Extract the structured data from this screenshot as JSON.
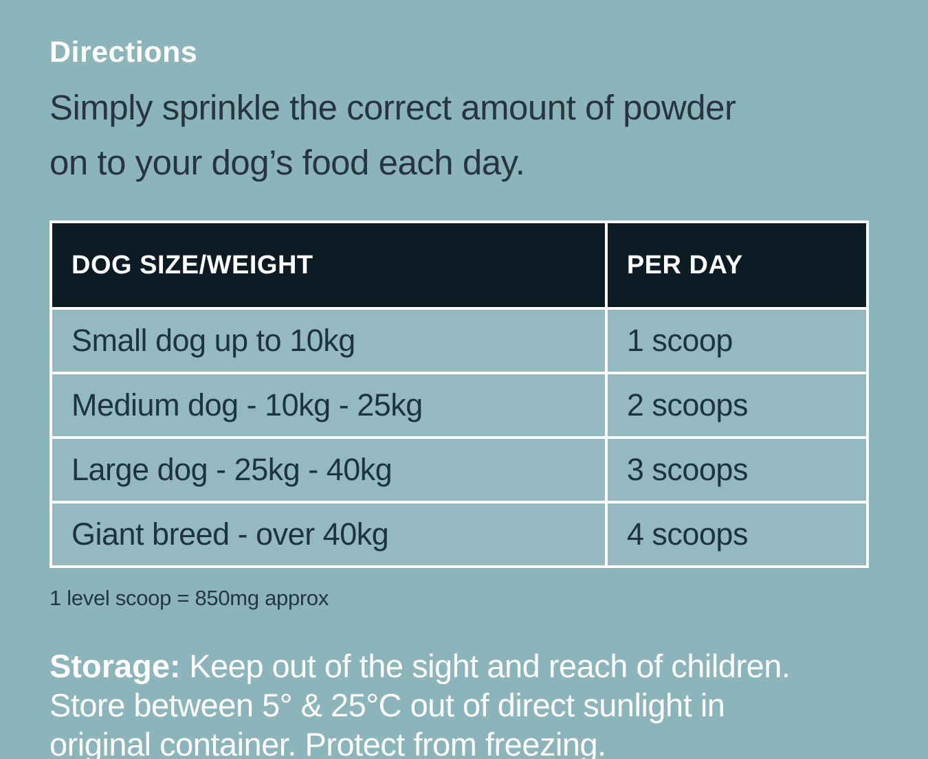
{
  "colors": {
    "background": "#8cb4bb",
    "table_header_bg": "#0d1b25",
    "table_cell_bg": "#95b9c0",
    "table_border": "#ffffff",
    "text_dark": "#1d333f",
    "text_light": "#ffffff"
  },
  "directions": {
    "title": "Directions",
    "line1": "Simply sprinkle the correct amount of powder",
    "line2": "on to your dog’s food each day."
  },
  "dosage_table": {
    "headers": [
      "DOG SIZE/WEIGHT",
      "PER DAY"
    ],
    "rows": [
      {
        "size": "Small dog up to 10kg",
        "per_day": "1 scoop"
      },
      {
        "size": "Medium dog - 10kg - 25kg",
        "per_day": "2 scoops"
      },
      {
        "size": "Large dog - 25kg - 40kg",
        "per_day": "3 scoops"
      },
      {
        "size": "Giant breed - over 40kg",
        "per_day": "4 scoops"
      }
    ],
    "note": "1 level scoop = 850mg approx"
  },
  "storage": {
    "label": "Storage:",
    "line1": " Keep out of the sight and reach of children.",
    "line2": "Store between 5° & 25°C out of direct sunlight in",
    "line3": "original container. Protect from freezing."
  }
}
